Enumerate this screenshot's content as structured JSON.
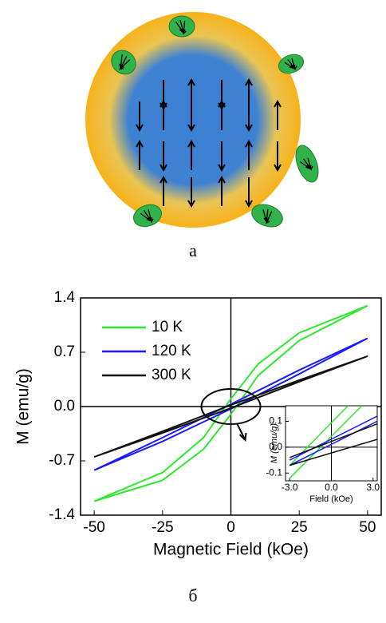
{
  "labels": {
    "a": "a",
    "b": "б"
  },
  "chart_data": [
    {
      "type": "line",
      "xlabel": "Magnetic Field (kOe)",
      "ylabel": "M (emu/g)",
      "xlim": [
        -55,
        55
      ],
      "ylim": [
        -1.4,
        1.4
      ],
      "xticks": [
        -50,
        -25,
        0,
        25,
        50
      ],
      "yticks": [
        -1.4,
        -0.7,
        {
          "value": 0,
          "label": "0.0"
        },
        0.7,
        1.4
      ],
      "legend": "upper left",
      "series": [
        {
          "name": "10 K",
          "color": "#2ee82e",
          "x": [
            50,
            25,
            10,
            0,
            -10,
            -25,
            -50,
            -25,
            -10,
            0,
            10,
            25,
            50
          ],
          "values": [
            1.3,
            0.95,
            0.55,
            0.1,
            -0.4,
            -0.85,
            -1.22,
            -0.95,
            -0.55,
            -0.1,
            0.4,
            0.85,
            1.3
          ]
        },
        {
          "name": "120 K",
          "color": "#1a1aff",
          "x": [
            50,
            25,
            0,
            -25,
            -50,
            -25,
            0,
            25,
            50
          ],
          "values": [
            0.88,
            0.47,
            0.03,
            -0.4,
            -0.82,
            -0.45,
            -0.03,
            0.42,
            0.88
          ]
        },
        {
          "name": "300 K",
          "color": "#111111",
          "x": [
            50,
            25,
            0,
            -25,
            -50,
            -25,
            0,
            25,
            50
          ],
          "values": [
            0.65,
            0.34,
            0.02,
            -0.32,
            -0.65,
            -0.34,
            -0.02,
            0.32,
            0.65
          ]
        }
      ]
    },
    {
      "type": "line",
      "xlabel": "Field (kOe)",
      "ylabel": "M (emu/g)",
      "xlim": [
        -3.3,
        3.3
      ],
      "ylim": [
        -0.13,
        0.16
      ],
      "xticks": [
        {
          "value": -3,
          "label": "-3.0"
        },
        {
          "value": 0,
          "label": "0.0"
        },
        {
          "value": 3,
          "label": "3.0"
        }
      ],
      "yticks": [
        -0.1,
        {
          "value": 0,
          "label": "0.0"
        },
        0.1
      ],
      "series": [
        {
          "name": "10 K",
          "color": "#2ee82e",
          "x": [
            -3,
            1.2,
            null,
            -3,
            2.2
          ],
          "values": [
            -0.07,
            0.16,
            null,
            -0.12,
            0.16
          ]
        },
        {
          "name": "120 K",
          "color": "#1a1aff",
          "x": [
            -3,
            3.3,
            null,
            -3,
            3.3
          ],
          "values": [
            -0.05,
            0.12,
            null,
            -0.07,
            0.1
          ]
        },
        {
          "name": "300 K",
          "color": "#111111",
          "x": [
            -3,
            3.3,
            null,
            -3,
            3.3
          ],
          "values": [
            -0.04,
            0.09,
            null,
            -0.07,
            0.03
          ]
        }
      ]
    }
  ]
}
